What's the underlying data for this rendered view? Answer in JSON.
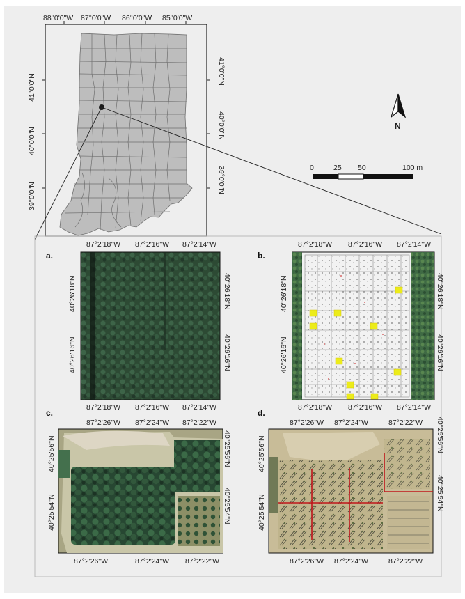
{
  "overview": {
    "top_lon_labels": [
      "88°0'0\"W",
      "87°0'0\"W",
      "86°0'0\"W",
      "85°0'0\"W"
    ],
    "left_lat_labels": [
      "41°0'0\"N",
      "40°0'0\"N",
      "39°0'0\"N"
    ],
    "right_lat_labels": [
      "41°0'0\"N",
      "40°0'0\"N",
      "39°0'0\"N"
    ]
  },
  "north_arrow": {
    "label": "N"
  },
  "scale_bar": {
    "ticks": [
      "0",
      "25",
      "50"
    ],
    "end_label": "100 m"
  },
  "panels": [
    {
      "letter": "a.",
      "lon_labels": [
        "87°2'18\"W",
        "87°2'16\"W",
        "87°2'14\"W"
      ],
      "lat_labels": [
        "40°26'18\"N",
        "40°26'16\"N"
      ]
    },
    {
      "letter": "b.",
      "lon_labels": [
        "87°2'18\"W",
        "87°2'16\"W",
        "87°2'14\"W"
      ],
      "lat_labels": [
        "40°26'18\"N",
        "40°26'16\"N"
      ]
    },
    {
      "letter": "c.",
      "lon_labels": [
        "87°2'26\"W",
        "87°2'24\"W",
        "87°2'22\"W"
      ],
      "lat_labels": [
        "40°25'56\"N",
        "40°25'54\"N"
      ]
    },
    {
      "letter": "d.",
      "lon_labels": [
        "87°2'26\"W",
        "87°2'24\"W",
        "87°2'22\"W"
      ],
      "lat_labels": [
        "40°25'56\"N",
        "40°25'54\"N"
      ]
    }
  ],
  "colors": {
    "state_fill": "#bdbdbd",
    "county_line": "#6e6e6e",
    "canopy": "#2f4d35",
    "grid_red": "#c0171b",
    "marker_yellow": "#ecec1a"
  }
}
